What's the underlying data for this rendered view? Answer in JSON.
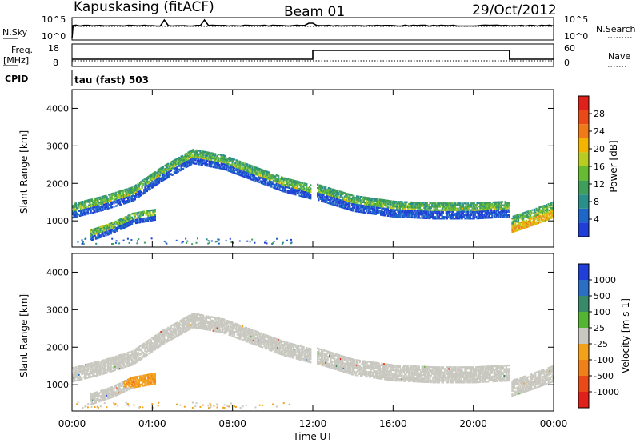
{
  "header": {
    "site": "Kapuskasing (fitACF)",
    "beam": "Beam 01",
    "date": "29/Oct/2012"
  },
  "strip_nsky": {
    "left_label": "N.Sky",
    "right_label": "N.Search",
    "left_ticks": [
      "10^5",
      "10^0"
    ],
    "right_ticks": [
      "10^5",
      "10^0"
    ]
  },
  "strip_freq": {
    "left_label_1": "Freq.",
    "left_label_2": "[MHz]",
    "right_label": "Nave",
    "left_ticks": [
      "18",
      "8"
    ],
    "right_ticks": [
      "60",
      "0"
    ]
  },
  "cpid": {
    "label": "CPID",
    "text": "tau (fast) 503"
  },
  "x_axis": {
    "title": "Time UT",
    "ticks": [
      "00:00",
      "04:00",
      "08:00",
      "12:00",
      "16:00",
      "20:00",
      "00:00"
    ]
  },
  "colors": {
    "power_scale": [
      "#1f3fd8",
      "#1e66c8",
      "#2a8f8a",
      "#3e9e5a",
      "#66bb33",
      "#b8cc22",
      "#f2b400",
      "#f07a1a",
      "#ea4a18",
      "#e0201a"
    ],
    "velocity_scale": [
      "#1f3fd8",
      "#2a6fc4",
      "#3a8a6a",
      "#55b533",
      "#c8c8c0",
      "#f2a21a",
      "#f0801a",
      "#ea4a18",
      "#e0201a"
    ],
    "ground_scatter": "#c8c8c0"
  },
  "chart_data": [
    {
      "type": "heatmap",
      "title": "",
      "xlabel": "Time UT",
      "ylabel": "Slant Range [km]",
      "ylim": [
        300,
        4500
      ],
      "xlim_hours": [
        0,
        24
      ],
      "yticks": [
        "1000",
        "2000",
        "3000",
        "4000"
      ],
      "colorbar": {
        "label": "Power [dB]",
        "range": [
          0,
          32
        ],
        "ticks": [
          "4",
          "8",
          "12",
          "16",
          "20",
          "24",
          "28"
        ]
      },
      "echo_bands": [
        {
          "name": "main",
          "t": [
            0,
            1.5,
            3,
            4.5,
            6,
            7.5,
            9,
            10.5,
            11.9
          ],
          "range": [
            1300,
            1500,
            1750,
            2300,
            2750,
            2600,
            2300,
            2000,
            1800
          ]
        },
        {
          "name": "lower",
          "t": [
            0.9,
            2,
            3,
            4.1
          ],
          "range": [
            650,
            850,
            1100,
            1200
          ]
        },
        {
          "name": "afternoon",
          "t": [
            12.2,
            14,
            16,
            18,
            20,
            21.8
          ],
          "range": [
            1800,
            1500,
            1350,
            1300,
            1300,
            1350
          ]
        },
        {
          "name": "late",
          "t": [
            21.9,
            23,
            24
          ],
          "range": [
            950,
            1150,
            1350
          ]
        }
      ]
    },
    {
      "type": "heatmap",
      "title": "",
      "xlabel": "Time UT",
      "ylabel": "Slant Range [km]",
      "ylim": [
        300,
        4500
      ],
      "xlim_hours": [
        0,
        24
      ],
      "yticks": [
        "1000",
        "2000",
        "3000",
        "4000"
      ],
      "colorbar": {
        "label": "Velocity [m s-1]",
        "ticks": [
          "1000",
          "500",
          "100",
          "25",
          "-25",
          "-100",
          "-500",
          "-1000"
        ]
      },
      "ground_scatter": "most echoes gray (ground scatter)",
      "orange_region": {
        "t": [
          2.5,
          4.1
        ],
        "range": [
          1000,
          1400
        ],
        "velocity_approx": -100
      }
    },
    {
      "type": "line",
      "title": "",
      "series": [
        {
          "name": "N.Sky",
          "t": [
            0,
            24
          ],
          "values": "~10^3 nearly flat"
        },
        {
          "name": "Freq.",
          "t": [
            0,
            12,
            12,
            21.8,
            21.8,
            24
          ],
          "values": [
            10,
            10,
            16,
            16,
            10,
            10
          ]
        }
      ]
    }
  ]
}
